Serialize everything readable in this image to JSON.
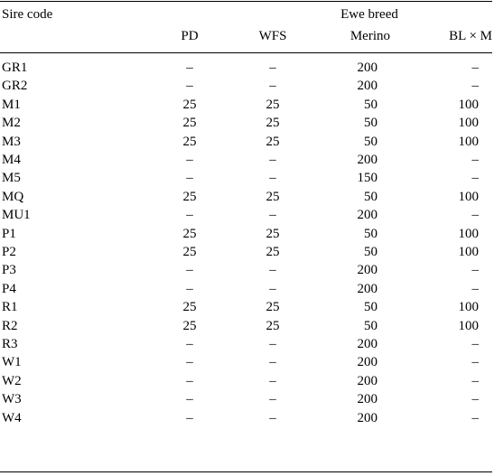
{
  "header": {
    "sire_code": "Sire code",
    "ewe_breed": "Ewe breed",
    "columns": [
      "PD",
      "WFS",
      "Merino",
      "BL × M"
    ]
  },
  "rows": [
    {
      "code": "GR1",
      "pd": "–",
      "wfs": "–",
      "merino": "200",
      "bl": "–"
    },
    {
      "code": "GR2",
      "pd": "–",
      "wfs": "–",
      "merino": "200",
      "bl": "–"
    },
    {
      "code": "M1",
      "pd": "25",
      "wfs": "25",
      "merino": "50",
      "bl": "100"
    },
    {
      "code": "M2",
      "pd": "25",
      "wfs": "25",
      "merino": "50",
      "bl": "100"
    },
    {
      "code": "M3",
      "pd": "25",
      "wfs": "25",
      "merino": "50",
      "bl": "100"
    },
    {
      "code": "M4",
      "pd": "–",
      "wfs": "–",
      "merino": "200",
      "bl": "–"
    },
    {
      "code": "M5",
      "pd": "–",
      "wfs": "–",
      "merino": "150",
      "bl": "–"
    },
    {
      "code": "MQ",
      "pd": "25",
      "wfs": "25",
      "merino": "50",
      "bl": "100"
    },
    {
      "code": "MU1",
      "pd": "–",
      "wfs": "–",
      "merino": "200",
      "bl": "–"
    },
    {
      "code": "P1",
      "pd": "25",
      "wfs": "25",
      "merino": "50",
      "bl": "100"
    },
    {
      "code": "P2",
      "pd": "25",
      "wfs": "25",
      "merino": "50",
      "bl": "100"
    },
    {
      "code": "P3",
      "pd": "–",
      "wfs": "–",
      "merino": "200",
      "bl": "–"
    },
    {
      "code": "P4",
      "pd": "–",
      "wfs": "–",
      "merino": "200",
      "bl": "–"
    },
    {
      "code": "R1",
      "pd": "25",
      "wfs": "25",
      "merino": "50",
      "bl": "100"
    },
    {
      "code": "R2",
      "pd": "25",
      "wfs": "25",
      "merino": "50",
      "bl": "100"
    },
    {
      "code": "R3",
      "pd": "–",
      "wfs": "–",
      "merino": "200",
      "bl": "–"
    },
    {
      "code": "W1",
      "pd": "–",
      "wfs": "–",
      "merino": "200",
      "bl": "–"
    },
    {
      "code": "W2",
      "pd": "–",
      "wfs": "–",
      "merino": "200",
      "bl": "–"
    },
    {
      "code": "W3",
      "pd": "–",
      "wfs": "–",
      "merino": "200",
      "bl": "–"
    },
    {
      "code": "W4",
      "pd": "–",
      "wfs": "–",
      "merino": "200",
      "bl": "–"
    }
  ]
}
